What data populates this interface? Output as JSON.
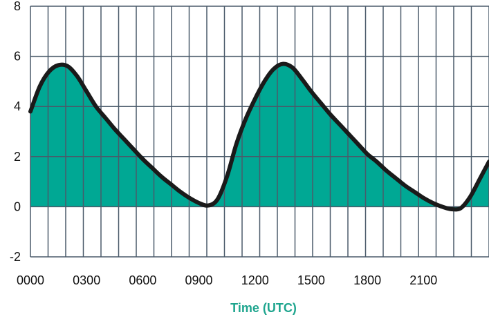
{
  "chart_data": {
    "type": "area",
    "title": "",
    "xlabel": "Time (UTC)",
    "ylabel": "",
    "x_unit": "hours",
    "xlim": [
      0,
      24.5
    ],
    "ylim": [
      -2,
      8
    ],
    "y_ticks": [
      8,
      6,
      4,
      2,
      0,
      -2
    ],
    "x_ticks": [
      {
        "value": 0,
        "label": "0000"
      },
      {
        "value": 3,
        "label": "0300"
      },
      {
        "value": 6,
        "label": "0600"
      },
      {
        "value": 9,
        "label": "0900"
      },
      {
        "value": 12,
        "label": "1200"
      },
      {
        "value": 15,
        "label": "1500"
      },
      {
        "value": 18,
        "label": "1800"
      },
      {
        "value": 21,
        "label": "2100"
      }
    ],
    "grid": true,
    "series": [
      {
        "x": [
          0,
          0.5,
          1,
          1.5,
          2,
          2.5,
          3,
          3.5,
          4,
          4.5,
          5,
          5.5,
          6,
          6.5,
          7,
          7.5,
          8,
          8.5,
          9,
          9.5,
          10,
          10.5,
          11,
          11.5,
          12,
          12.5,
          13,
          13.5,
          14,
          14.5,
          15,
          15.5,
          16,
          16.5,
          17,
          17.5,
          18,
          18.5,
          19,
          19.5,
          20,
          20.5,
          21,
          21.5,
          22,
          22.5,
          23,
          23.5,
          24,
          24.5
        ],
        "y": [
          3.8,
          4.8,
          5.4,
          5.65,
          5.6,
          5.2,
          4.6,
          4.0,
          3.55,
          3.1,
          2.7,
          2.3,
          1.9,
          1.55,
          1.2,
          0.9,
          0.6,
          0.35,
          0.15,
          0.05,
          0.3,
          1.2,
          2.5,
          3.5,
          4.3,
          5.0,
          5.5,
          5.7,
          5.55,
          5.1,
          4.6,
          4.15,
          3.7,
          3.3,
          2.9,
          2.5,
          2.1,
          1.8,
          1.45,
          1.15,
          0.85,
          0.6,
          0.35,
          0.15,
          0.0,
          -0.1,
          -0.05,
          0.4,
          1.1,
          1.8
        ]
      }
    ],
    "colors": {
      "fill": "#00a894",
      "line": "#1a1a1a",
      "grid": "#4a5a6a",
      "xlabel": "#1ea58e"
    }
  }
}
